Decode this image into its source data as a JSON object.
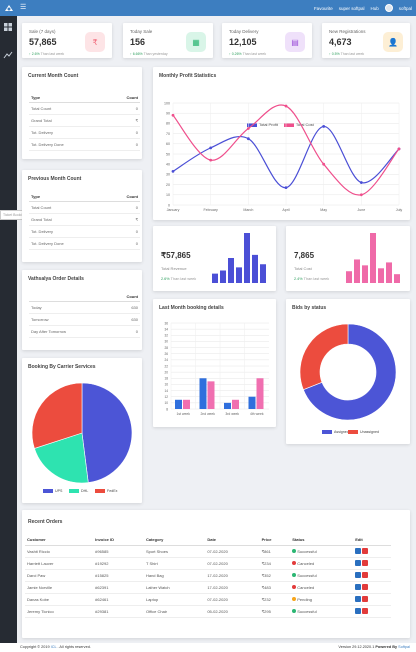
{
  "header": {
    "favourite": "Favourite",
    "company": "super softpal",
    "hub": "Hub",
    "user": "softpal"
  },
  "sidebar": {
    "tooltip": "Ticket Booking List"
  },
  "stats": [
    {
      "title": "Sale (7 days)",
      "value": "57,865",
      "pct": "2.6%",
      "compare": "Than last week",
      "icon": "rupee-icon",
      "color": "#f26d7d",
      "bg": "#fde4e6"
    },
    {
      "title": "Today Sale",
      "value": "156",
      "pct": "6.66%",
      "compare": "Than yesterday",
      "icon": "sales-icon",
      "color": "#2bb673",
      "bg": "#d9f5e8"
    },
    {
      "title": "Today Delivery",
      "value": "12,105",
      "pct": "0.26%",
      "compare": "Than last week",
      "icon": "delivery-icon",
      "color": "#9b4fd8",
      "bg": "#efe1fa"
    },
    {
      "title": "New Registrations",
      "value": "4,673",
      "pct": "0.5%",
      "compare": "Than last week",
      "icon": "user-icon",
      "color": "#f7a51a",
      "bg": "#fdefd5"
    }
  ],
  "current_month": {
    "title": "Current Month Count",
    "col_type": "Type",
    "col_count": "Count",
    "rows": [
      {
        "type": "Total Count",
        "count": "0"
      },
      {
        "type": "Grand Total",
        "count": "₹"
      },
      {
        "type": "Tot. Delivery",
        "count": "0"
      },
      {
        "type": "Tot. Delivery Done",
        "count": "0"
      }
    ]
  },
  "previous_month": {
    "title": "Previous Month Count",
    "col_type": "Type",
    "col_count": "Count",
    "rows": [
      {
        "type": "Total Count",
        "count": "0"
      },
      {
        "type": "Grand Total",
        "count": "₹"
      },
      {
        "type": "Tot. Delivery",
        "count": "0"
      },
      {
        "type": "Tot. Delivery Done",
        "count": "0"
      }
    ]
  },
  "vathsalya": {
    "title": "Vathsalya Order Details",
    "col_count": "Count",
    "rows": [
      {
        "type": "Today",
        "count": "630"
      },
      {
        "type": "Tomorrow",
        "count": "630"
      },
      {
        "type": "Day After Tomorrow",
        "count": "0"
      }
    ]
  },
  "monthly_profit": {
    "title": "Monthly Profit Statistics",
    "chart_data": {
      "type": "line",
      "categories": [
        "January",
        "February",
        "March",
        "April",
        "May",
        "June",
        "July"
      ],
      "ylim": [
        0,
        100
      ],
      "yticks": [
        0,
        10,
        20,
        30,
        40,
        50,
        60,
        70,
        80,
        90,
        100
      ],
      "series": [
        {
          "name": "Total Profit",
          "color": "#4b4fd6",
          "values": [
            33,
            56,
            65,
            17,
            77,
            22,
            55
          ]
        },
        {
          "name": "Total Cost",
          "color": "#ef4f8c",
          "values": [
            88,
            44,
            75,
            97,
            40,
            10,
            55
          ]
        }
      ]
    }
  },
  "revenue": {
    "value": "₹57,865",
    "label": "Total Revenue",
    "pct": "2.6%",
    "compare": "Than last week",
    "chart_data": {
      "type": "bar",
      "values": [
        15,
        20,
        40,
        25,
        80,
        45,
        30
      ],
      "color": "#4b4fd6"
    }
  },
  "cost": {
    "value": "7,865",
    "label": "Total Cost",
    "pct": "2.4%",
    "compare": "Than last week",
    "chart_data": {
      "type": "bar",
      "values": [
        20,
        40,
        30,
        85,
        25,
        35,
        15
      ],
      "color": "#ef6aa8"
    }
  },
  "last_month": {
    "title": "Last Month booking details",
    "chart_data": {
      "type": "bar",
      "categories": [
        "1st week",
        "2nd week",
        "3rd week",
        "4th week"
      ],
      "ylim": [
        8,
        36
      ],
      "yticks": [
        8,
        10,
        12,
        14,
        16,
        18,
        20,
        22,
        24,
        26,
        28,
        30,
        32,
        34,
        36
      ],
      "series": [
        {
          "name": "Series A",
          "color": "#2f6fdd",
          "values": [
            11,
            18,
            10,
            12
          ]
        },
        {
          "name": "Series B",
          "color": "#f06fb0",
          "values": [
            11,
            17,
            11,
            18
          ]
        }
      ]
    }
  },
  "bids": {
    "title": "Bids by status",
    "chart_data": {
      "type": "pie",
      "labels": [
        "Assigned",
        "Unassigned"
      ],
      "values": [
        69,
        31
      ],
      "colors": [
        "#4c55d6",
        "#ec4c3e"
      ]
    }
  },
  "carrier": {
    "title": "Booking By Carrier Services",
    "chart_data": {
      "type": "pie",
      "labels": [
        "UPS",
        "DHL",
        "FedEx"
      ],
      "values": [
        48,
        22,
        30
      ],
      "colors": [
        "#4c55d6",
        "#2ee3b0",
        "#ec4c3e"
      ]
    }
  },
  "recent_orders": {
    "title": "Recent Orders",
    "columns": [
      "Customer",
      "Invoice ID",
      "Category",
      "Date",
      "Price",
      "Status",
      "Edit"
    ],
    "rows": [
      {
        "customer": "Vashti Riccio",
        "invoice": "#96585",
        "category": "Sport Shoes",
        "date": "07-02-2020",
        "price": "₹861",
        "status": "Successful",
        "status_color": "#2bb673"
      },
      {
        "customer": "Harriett Lauver",
        "invoice": "#19292",
        "category": "T Shirt",
        "date": "07-02-2020",
        "price": "₹234",
        "status": "Canceled",
        "status_color": "#e23b3b"
      },
      {
        "customer": "Darci Paw",
        "invoice": "#15825",
        "category": "Hand Bag",
        "date": "17-02-2020",
        "price": "₹352",
        "status": "Successful",
        "status_color": "#2bb673"
      },
      {
        "customer": "Jamie Norville",
        "invoice": "#62391",
        "category": "Lather Watch",
        "date": "17-02-2020",
        "price": "₹483",
        "status": "Canceled",
        "status_color": "#e23b3b"
      },
      {
        "customer": "Danas Kobe",
        "invoice": "#62461",
        "category": "Laptop",
        "date": "07-02-2020",
        "price": "₹232",
        "status": "Pending",
        "status_color": "#f7a51a"
      },
      {
        "customer": "Jeremy Ticnico",
        "invoice": "#29381",
        "category": "Office Chair",
        "date": "05-02-2020",
        "price": "₹295",
        "status": "Successful",
        "status_color": "#2bb673"
      }
    ]
  },
  "footer": {
    "copyright": "Copyright © 2019",
    "brand": "ICL",
    "rights": ". All rights reserved.",
    "version": "Version 29.12.2020.1",
    "powered": "Powered By",
    "powered_brand": "Softpal"
  }
}
